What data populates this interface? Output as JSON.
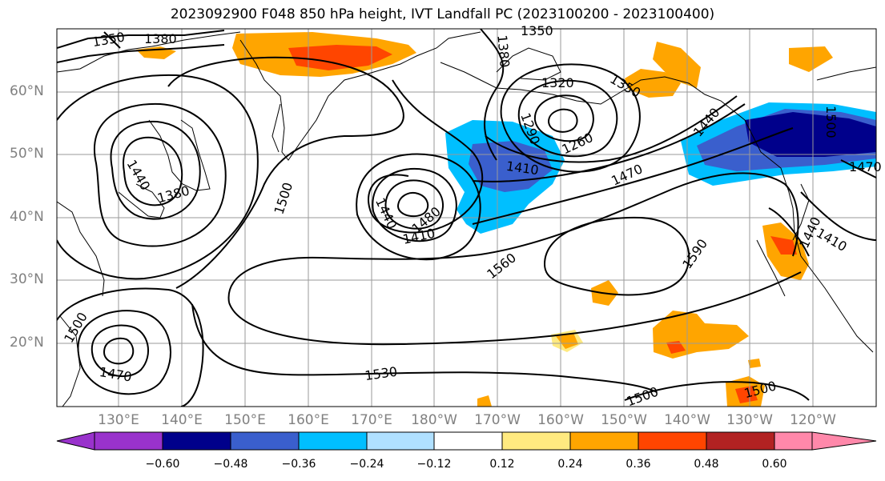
{
  "title": "2023092900 F048 850 hPa height, IVT Landfall PC (2023100200 - 2023100400)",
  "lat_labels": [
    "60°N",
    "50°N",
    "40°N",
    "30°N",
    "20°N"
  ],
  "lon_labels": [
    "130°E",
    "140°E",
    "150°E",
    "160°E",
    "170°E",
    "180°W",
    "170°W",
    "160°W",
    "150°W",
    "140°W",
    "130°W",
    "120°W"
  ],
  "contour_labels": [
    "1350",
    "1380",
    "1380",
    "1350",
    "1320",
    "1290",
    "1260",
    "1350",
    "1440",
    "1500",
    "1410",
    "1470",
    "1440",
    "1380",
    "1500",
    "1440",
    "1410",
    "1480",
    "1560",
    "1590",
    "1440",
    "1410",
    "1530",
    "1500",
    "1500",
    "1470",
    "1500",
    "1470"
  ],
  "colorbar": {
    "tick_labels": [
      "−0.60",
      "−0.48",
      "−0.36",
      "−0.24",
      "−0.12",
      "0.12",
      "0.24",
      "0.36",
      "0.48",
      "0.60"
    ],
    "colors": [
      "#9932cc",
      "#00008b",
      "#3a5fcd",
      "#00bfff",
      "#b0e0ff",
      "#ffffff",
      "#ffea80",
      "#ffa500",
      "#ff4500",
      "#b22222",
      "#ff88aa"
    ]
  },
  "colors": {
    "coast": "#000000",
    "grid": "#9a9a9a",
    "axis_label": "#808080"
  }
}
